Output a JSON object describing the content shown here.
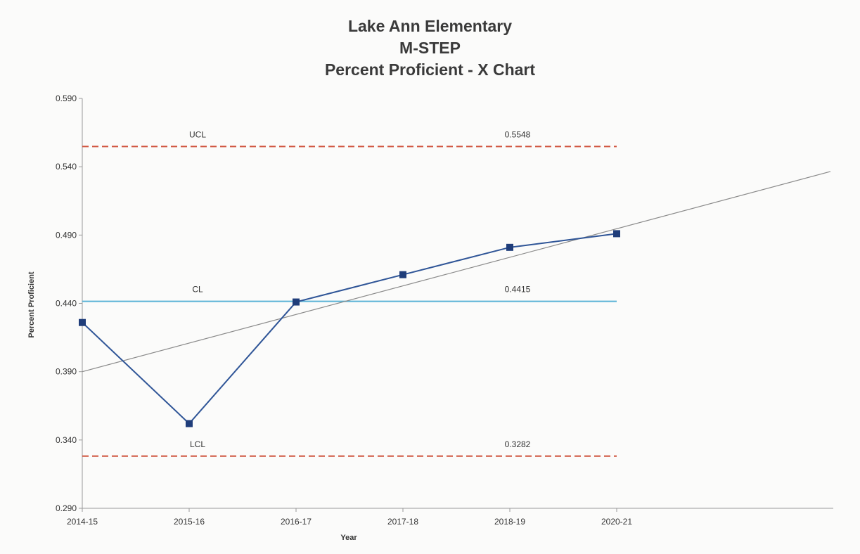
{
  "title_lines": [
    "Lake Ann Elementary",
    "M-STEP",
    "Percent Proficient - X Chart"
  ],
  "chart_data": {
    "type": "line",
    "title": "Lake Ann Elementary M-STEP Percent Proficient - X Chart",
    "xlabel": "Year",
    "ylabel": "Percent Proficient",
    "categories": [
      "2014-15",
      "2015-16",
      "2016-17",
      "2017-18",
      "2018-19",
      "2020-21"
    ],
    "ylim": [
      0.29,
      0.59
    ],
    "yticks": [
      "0.290",
      "0.340",
      "0.390",
      "0.440",
      "0.490",
      "0.540",
      "0.590"
    ],
    "series": [
      {
        "values": [
          0.426,
          0.352,
          0.441,
          0.461,
          0.481,
          0.491
        ]
      }
    ],
    "trendline": {
      "start": 0.39,
      "end_at_x_index_7": 0.5365
    },
    "control_lines": [
      {
        "key": "UCL",
        "label": "UCL",
        "value": 0.5548,
        "value_label": "0.5548",
        "style": "dashed",
        "color": "#d0543e"
      },
      {
        "key": "CL",
        "label": "CL",
        "value": 0.4415,
        "value_label": "0.4415",
        "style": "solid",
        "color": "#5ab3d6"
      },
      {
        "key": "LCL",
        "label": "LCL",
        "value": 0.3282,
        "value_label": "0.3282",
        "style": "dashed",
        "color": "#d0543e"
      }
    ],
    "colors": {
      "series": "#2f5597",
      "marker": "#1f3d7a",
      "trend": "#8a8a8a",
      "axis": "#9a9a9a"
    },
    "grid": false,
    "legend": "none"
  }
}
